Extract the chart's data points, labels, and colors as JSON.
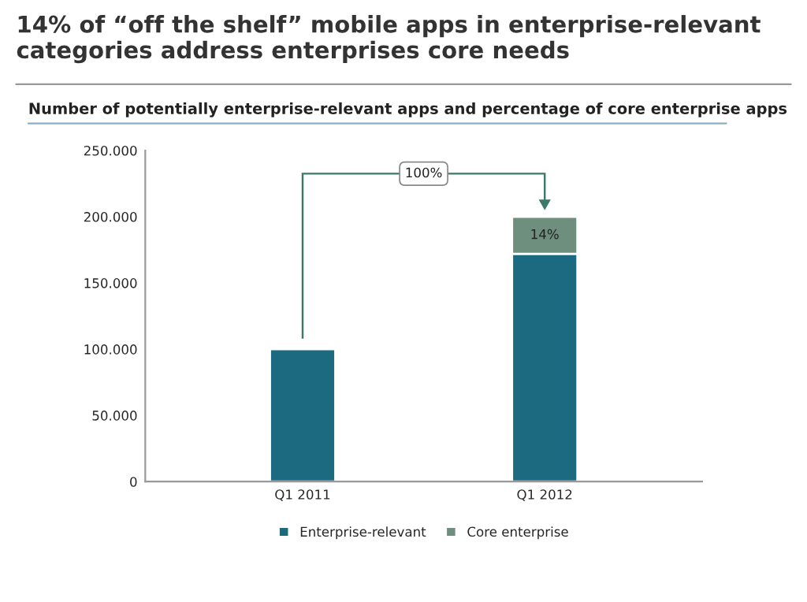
{
  "chart_data": {
    "type": "bar",
    "title": "14% of “off the shelf” mobile apps in enterprise-relevant categories address enterprises core needs",
    "subtitle": "Number of potentially enterprise-relevant apps and percentage of core enterprise apps",
    "categories": [
      "Q1 2011",
      "Q1 2012"
    ],
    "stacked": true,
    "series": [
      {
        "name": "Enterprise-relevant",
        "color": "#1b6a80",
        "values": [
          100000,
          172000
        ]
      },
      {
        "name": "Core enterprise",
        "color": "#6e8e7e",
        "values": [
          null,
          28000
        ]
      }
    ],
    "ylim": [
      0,
      250000
    ],
    "yticks": [
      {
        "value": 0,
        "label": "0"
      },
      {
        "value": 50000,
        "label": "50.000"
      },
      {
        "value": 100000,
        "label": "100.000"
      },
      {
        "value": 150000,
        "label": "150.000"
      },
      {
        "value": 200000,
        "label": "200.000"
      },
      {
        "value": 250000,
        "label": "250.000"
      }
    ],
    "grid": false,
    "legend": "bottom",
    "annotations": [
      "100%",
      "14%"
    ]
  }
}
